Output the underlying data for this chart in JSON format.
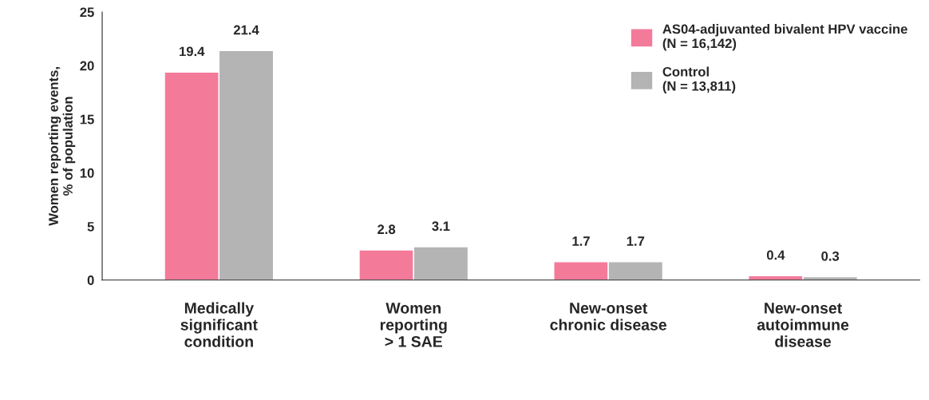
{
  "chart_data": {
    "type": "bar",
    "categories": [
      "Medically\nsignificant\ncondition",
      "Women\nreporting\n> 1 SAE",
      "New-onset\nchronic disease",
      "New-onset\nautoimmune\ndisease"
    ],
    "series": [
      {
        "name": "AS04-adjuvanted bivalent HPV vaccine\n(N = 16,142)",
        "color": "#f47a9a",
        "values": [
          19.4,
          2.8,
          1.7,
          0.4
        ]
      },
      {
        "name": "Control\n(N = 13,811)",
        "color": "#b4b4b4",
        "values": [
          21.4,
          3.1,
          1.7,
          0.3
        ]
      }
    ],
    "ylabel": "Women reporting events,\n% of population",
    "ylim": [
      0,
      25
    ],
    "yticks": [
      0,
      5,
      10,
      15,
      20,
      25
    ],
    "data_labels": true,
    "grid": false,
    "legend": "top right"
  }
}
